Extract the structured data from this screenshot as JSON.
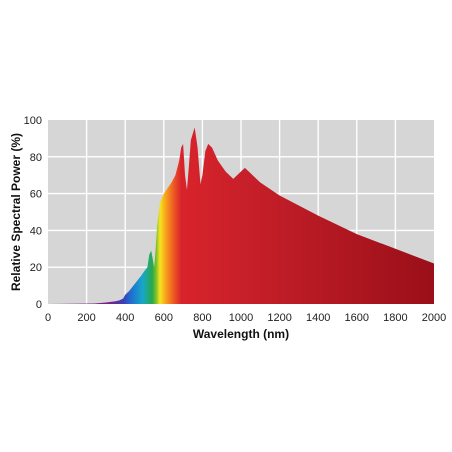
{
  "chart_data": {
    "type": "area",
    "title": "",
    "xlabel": "Wavelength (nm)",
    "ylabel": "Relative Spectral Power (%)",
    "xlim": [
      0,
      2000
    ],
    "ylim": [
      0,
      100
    ],
    "xticks": [
      0,
      200,
      400,
      600,
      800,
      1000,
      1200,
      1400,
      1600,
      1800,
      2000
    ],
    "yticks": [
      0,
      20,
      40,
      60,
      80,
      100
    ],
    "grid": true,
    "legend": "none",
    "colors": {
      "background": "#d6d6d6",
      "grid": "#ffffff",
      "uv": "#7a1f8a",
      "infrared": "#c8202a",
      "infrared_dark": "#9a0f18"
    },
    "series": [
      {
        "x": [
          0,
          240,
          300,
          350,
          370,
          390,
          400,
          420,
          450,
          480,
          500,
          515,
          525,
          535,
          545,
          550,
          555,
          565,
          580,
          600,
          620,
          640,
          660,
          680,
          690,
          700,
          710,
          720,
          730,
          740,
          760,
          775,
          790,
          800,
          815,
          830,
          850,
          880,
          920,
          960,
          1000,
          1020,
          1040,
          1080,
          1100,
          1200,
          1400,
          1600,
          1800,
          2000
        ],
        "y": [
          0,
          0.3,
          0.8,
          1.5,
          2,
          3,
          5,
          7,
          11,
          15,
          18,
          20,
          27,
          29,
          23,
          20,
          26,
          42,
          55,
          60,
          63,
          66,
          70,
          78,
          85,
          87,
          70,
          62,
          75,
          89,
          96,
          85,
          65,
          70,
          83,
          87,
          85,
          78,
          72,
          68,
          72,
          74,
          72,
          68,
          66,
          59,
          48,
          38,
          30,
          22
        ]
      }
    ]
  }
}
